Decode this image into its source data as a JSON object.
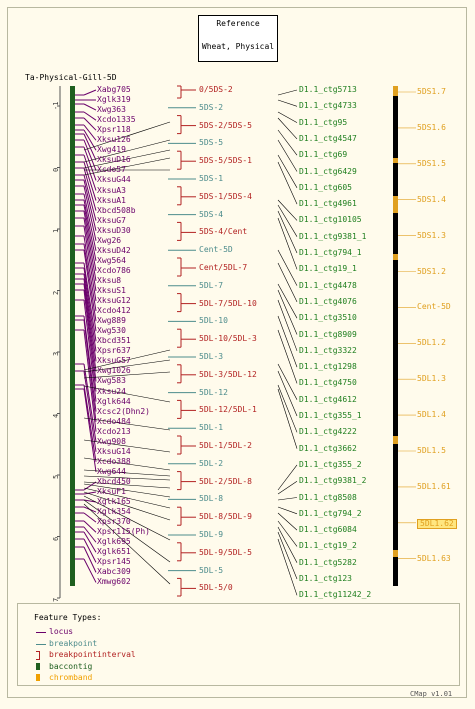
{
  "reference_box": {
    "label": "Reference",
    "map_set": "Wheat, Physical"
  },
  "map_title": "Ta-Physical-Gill-5D",
  "axis_ticks": [
    "-1",
    "0",
    "1",
    "2",
    "3",
    "4",
    "5",
    "6",
    "7"
  ],
  "loci": [
    "Xabg705",
    "Xglk319",
    "Xwg363",
    "Xcdo1335",
    "Xpsr118",
    "Xksu126",
    "Xwg419",
    "XksuD16",
    "Xcdo57",
    "XksuG44",
    "XksuA3",
    "XksuA1",
    "Xbcd508b",
    "XksuG7",
    "XksuD30",
    "Xwg26",
    "XksuD42",
    "Xwg564",
    "Xcdo786",
    "Xksu8",
    "XksuS1",
    "XksuG12",
    "Xcdo412",
    "Xwg889",
    "Xwg530",
    "Xbcd351",
    "Xpsr637",
    "XksuG57",
    "Xwg1026",
    "Xwg583",
    "Xksu24",
    "Xglk644",
    "Xcsc2(Dhn2)",
    "Xcdo484",
    "Xcdo213",
    "Xwg908",
    "XksuG14",
    "Xcdo388",
    "Xwg644",
    "Xbcd450",
    "XksuF1",
    "Xglk165",
    "Xglk354",
    "Xpsr370",
    "Xpsr115(Ph)",
    "Xglk695",
    "Xglk651",
    "Xpsr145",
    "Xabc309",
    "Xmwg602"
  ],
  "bins": [
    {
      "label": "0/5DS-2",
      "type": "breakpointinterval"
    },
    {
      "label": "5DS-2",
      "type": "breakpoint"
    },
    {
      "label": "5DS-2/5DS-5",
      "type": "breakpointinterval"
    },
    {
      "label": "5DS-5",
      "type": "breakpoint"
    },
    {
      "label": "5DS-5/5DS-1",
      "type": "breakpointinterval"
    },
    {
      "label": "5DS-1",
      "type": "breakpoint"
    },
    {
      "label": "5DS-1/5DS-4",
      "type": "breakpointinterval"
    },
    {
      "label": "5DS-4",
      "type": "breakpoint"
    },
    {
      "label": "5DS-4/Cent",
      "type": "breakpointinterval"
    },
    {
      "label": "Cent-5D",
      "type": "breakpoint"
    },
    {
      "label": "Cent/5DL-7",
      "type": "breakpointinterval"
    },
    {
      "label": "5DL-7",
      "type": "breakpoint"
    },
    {
      "label": "5DL-7/5DL-10",
      "type": "breakpointinterval"
    },
    {
      "label": "5DL-10",
      "type": "breakpoint"
    },
    {
      "label": "5DL-10/5DL-3",
      "type": "breakpointinterval"
    },
    {
      "label": "5DL-3",
      "type": "breakpoint"
    },
    {
      "label": "5DL-3/5DL-12",
      "type": "breakpointinterval"
    },
    {
      "label": "5DL-12",
      "type": "breakpoint"
    },
    {
      "label": "5DL-12/5DL-1",
      "type": "breakpointinterval"
    },
    {
      "label": "5DL-1",
      "type": "breakpoint"
    },
    {
      "label": "5DL-1/5DL-2",
      "type": "breakpointinterval"
    },
    {
      "label": "5DL-2",
      "type": "breakpoint"
    },
    {
      "label": "5DL-2/5DL-8",
      "type": "breakpointinterval"
    },
    {
      "label": "5DL-8",
      "type": "breakpoint"
    },
    {
      "label": "5DL-8/5DL-9",
      "type": "breakpointinterval"
    },
    {
      "label": "5DL-9",
      "type": "breakpoint"
    },
    {
      "label": "5DL-9/5DL-5",
      "type": "breakpointinterval"
    },
    {
      "label": "5DL-5",
      "type": "breakpoint"
    },
    {
      "label": "5DL-5/0",
      "type": "breakpointinterval"
    }
  ],
  "contigs": [
    "D1.1_ctg5713",
    "D1.1_ctg4733",
    "D1.1_ctg95",
    "D1.1_ctg4547",
    "D1.1_ctg69",
    "D1.1_ctg6429",
    "D1.1_ctg605",
    "D1.1_ctg4961",
    "D1.1_ctg10105",
    "D1.1_ctg9381_1",
    "D1.1_ctg794_1",
    "D1.1_ctg19_1",
    "D1.1_ctg4478",
    "D1.1_ctg4076",
    "D1.1_ctg3510",
    "D1.1_ctg8909",
    "D1.1_ctg3322",
    "D1.1_ctg1298",
    "D1.1_ctg4750",
    "D1.1_ctg4612",
    "D1.1_ctg355_1",
    "D1.1_ctg4222",
    "D1.1_ctg3662",
    "D1.1_ctg355_2",
    "D1.1_ctg9381_2",
    "D1.1_ctg8508",
    "D1.1_ctg794_2",
    "D1.1_ctg6084",
    "D1.1_ctg19_2",
    "D1.1_ctg5282",
    "D1.1_ctg123",
    "D1.1_ctg11242_2"
  ],
  "chrombands": [
    {
      "label": "5DS1.7",
      "highlighted": false
    },
    {
      "label": "5DS1.6",
      "highlighted": false
    },
    {
      "label": "5DS1.5",
      "highlighted": false
    },
    {
      "label": "5DS1.4",
      "highlighted": false
    },
    {
      "label": "5DS1.3",
      "highlighted": false
    },
    {
      "label": "5DS1.2",
      "highlighted": false
    },
    {
      "label": "Cent-5D",
      "highlighted": false
    },
    {
      "label": "5DL1.2",
      "highlighted": false
    },
    {
      "label": "5DL1.3",
      "highlighted": false
    },
    {
      "label": "5DL1.4",
      "highlighted": false
    },
    {
      "label": "5DL1.5",
      "highlighted": false
    },
    {
      "label": "5DL1.61",
      "highlighted": false
    },
    {
      "label": "5DL1.62",
      "highlighted": true
    },
    {
      "label": "5DL1.63",
      "highlighted": false
    }
  ],
  "legend": {
    "title": "Feature Types:",
    "items": [
      {
        "label": "locus",
        "icon": "line-icon",
        "color": "#6a006a"
      },
      {
        "label": "breakpoint",
        "icon": "line-icon",
        "color": "#4d8c8c"
      },
      {
        "label": "breakpointinterval",
        "icon": "bracket-icon",
        "color": "#b22222"
      },
      {
        "label": "baccontig",
        "icon": "bar-icon",
        "color": "#1f5f1f"
      },
      {
        "label": "chromband",
        "icon": "bar-icon",
        "color": "#f0a000"
      }
    ]
  },
  "version": "CMap v1.01",
  "colors": {
    "background": "#fffbec",
    "locus": "#6a006a",
    "breakpoint": "#4d8c8c",
    "breakpointinterval": "#b22222",
    "contig": "#1f7f1f",
    "chromband": "#e0a020",
    "map_bar": "#1f5f1f"
  }
}
